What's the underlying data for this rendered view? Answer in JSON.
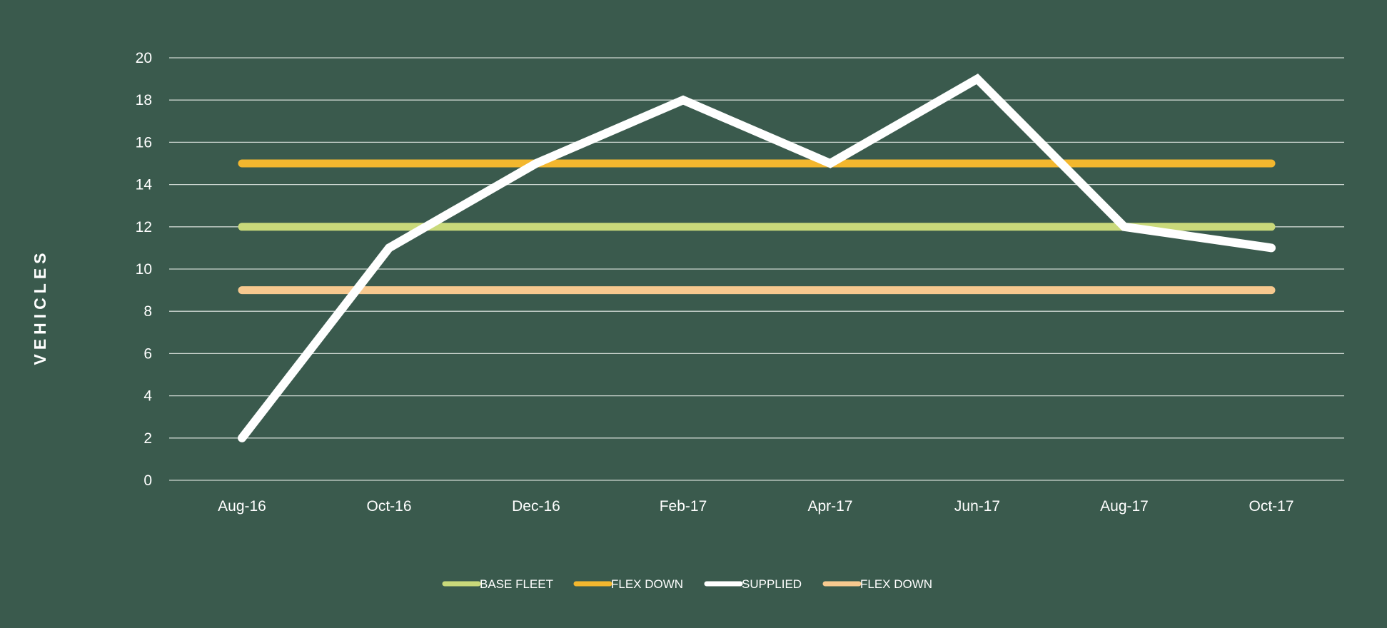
{
  "chart_data": {
    "type": "line",
    "title": "",
    "xlabel": "",
    "ylabel": "VEHICLES",
    "categories": [
      "Aug-16",
      "Oct-16",
      "Dec-16",
      "Feb-17",
      "Apr-17",
      "Jun-17",
      "Aug-17",
      "Oct-17"
    ],
    "ylim": [
      0,
      20
    ],
    "yticks": [
      0,
      2,
      4,
      6,
      8,
      10,
      12,
      14,
      16,
      18,
      20
    ],
    "grid": true,
    "legend_position": "bottom-center",
    "series": [
      {
        "name": "BASE FLEET",
        "color": "#c9d97a",
        "values": [
          12,
          12,
          12,
          12,
          12,
          12,
          12,
          12
        ]
      },
      {
        "name": "FLEX DOWN",
        "color": "#f3b72e",
        "values": [
          15,
          15,
          15,
          15,
          15,
          15,
          15,
          15
        ]
      },
      {
        "name": "SUPPLIED",
        "color": "#ffffff",
        "values": [
          2,
          11,
          15,
          18,
          15,
          19,
          12,
          11
        ]
      },
      {
        "name": "FLEX DOWN",
        "color": "#f7c98f",
        "values": [
          9,
          9,
          9,
          9,
          9,
          9,
          9,
          9
        ]
      }
    ],
    "colors": {
      "background": "#3a5a4d",
      "grid": "#e6ece8",
      "text": "#ffffff"
    }
  }
}
